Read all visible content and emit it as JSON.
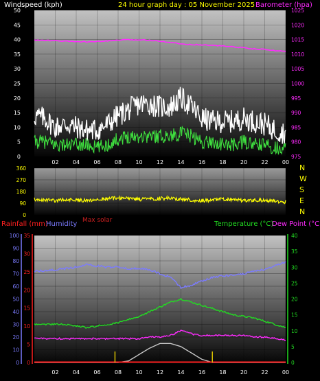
{
  "header": {
    "left_label": "Windspeed (kph)",
    "center_label": "24 hour graph day : 05 November 2025",
    "right_label": "Barometer (hpa)"
  },
  "colors": {
    "windspeed": "#ffffff",
    "wind_avg": "#3fe03f",
    "barometer": "#ff2bff",
    "direction": "#ffff00",
    "rainfall": "#ff2020",
    "humidity": "#7b7bff",
    "temperature": "#22dd22",
    "dewpoint": "#ff2bff",
    "solar": "#c8c8c8",
    "title": "#ffff00"
  },
  "x_ticks": [
    "02",
    "04",
    "06",
    "08",
    "10",
    "12",
    "14",
    "16",
    "18",
    "20",
    "22",
    "00"
  ],
  "chart_data": [
    {
      "type": "line",
      "panel": "wind-barometer",
      "left_axis": {
        "label": "Windspeed (kph)",
        "ticks": [
          0,
          5,
          10,
          15,
          20,
          25,
          30,
          35,
          40,
          45,
          50
        ],
        "range": [
          0,
          50
        ]
      },
      "right_axis": {
        "label": "Barometer (hpa)",
        "ticks": [
          975,
          980,
          985,
          990,
          995,
          1000,
          1005,
          1010,
          1015,
          1020,
          1025
        ],
        "range": [
          975,
          1025
        ]
      },
      "x": [
        0,
        1,
        2,
        3,
        4,
        5,
        6,
        7,
        8,
        9,
        10,
        11,
        12,
        13,
        14,
        15,
        16,
        17,
        18,
        19,
        20,
        21,
        22,
        23,
        24
      ],
      "series": [
        {
          "key": "gust",
          "axis": "left",
          "values": [
            14,
            13,
            10,
            11,
            10,
            9,
            9,
            11,
            14,
            16,
            18,
            18,
            17,
            17,
            20,
            17,
            13,
            12,
            12,
            12,
            13,
            12,
            11,
            9,
            8
          ]
        },
        {
          "key": "average",
          "axis": "left",
          "values": [
            5,
            5,
            4,
            4,
            4,
            4,
            3,
            4,
            6,
            7,
            7,
            7,
            7,
            7,
            8,
            7,
            5,
            5,
            4,
            4,
            5,
            4,
            4,
            3,
            3
          ]
        },
        {
          "key": "barometer",
          "axis": "right",
          "values": [
            1014.8,
            1014.7,
            1014.6,
            1014.4,
            1014.3,
            1014.2,
            1014.3,
            1014.5,
            1014.8,
            1014.9,
            1014.9,
            1014.8,
            1014.5,
            1014.0,
            1013.5,
            1013.3,
            1013.2,
            1013.0,
            1012.8,
            1012.5,
            1012.2,
            1011.8,
            1011.6,
            1011.2,
            1011.0
          ]
        }
      ]
    },
    {
      "type": "line",
      "panel": "wind-direction",
      "left_axis": {
        "ticks": [
          0,
          90,
          180,
          270,
          360
        ],
        "range": [
          0,
          360
        ]
      },
      "compass_labels": [
        "N",
        "W",
        "S",
        "E",
        "N"
      ],
      "x": [
        0,
        1,
        2,
        3,
        4,
        5,
        6,
        7,
        8,
        9,
        10,
        11,
        12,
        13,
        14,
        15,
        16,
        17,
        18,
        19,
        20,
        21,
        22,
        23,
        24
      ],
      "series": [
        {
          "key": "direction",
          "values": [
            120,
            115,
            110,
            120,
            115,
            110,
            120,
            125,
            130,
            125,
            120,
            120,
            125,
            130,
            120,
            115,
            110,
            115,
            120,
            115,
            110,
            115,
            110,
            105,
            100
          ]
        }
      ]
    },
    {
      "type": "line",
      "panel": "rain-humidity-temperature",
      "top_labels": {
        "rainfall": "Rainfall (mm)",
        "humidity": "Humidity",
        "solar": "Max solar",
        "temperature": "Temperature (°C)",
        "dewpoint": "Dew Point (°C)"
      },
      "humidity_axis": {
        "ticks": [
          0,
          10,
          20,
          30,
          40,
          50,
          60,
          70,
          80,
          90,
          100
        ],
        "range": [
          0,
          100
        ]
      },
      "rain_axis": {
        "ticks": [
          0,
          5,
          10,
          15,
          20,
          25,
          30,
          35
        ],
        "range": [
          0,
          35
        ]
      },
      "temp_axis": {
        "ticks": [
          0,
          5,
          10,
          15,
          20,
          25,
          30,
          35,
          40
        ],
        "range": [
          0,
          40
        ]
      },
      "x": [
        0,
        1,
        2,
        3,
        4,
        5,
        6,
        7,
        8,
        9,
        10,
        11,
        12,
        13,
        14,
        15,
        16,
        17,
        18,
        19,
        20,
        21,
        22,
        23,
        24
      ],
      "series": [
        {
          "key": "humidity",
          "axis": "humidity",
          "values": [
            72,
            72,
            73,
            74,
            75,
            77,
            76,
            75,
            75,
            74,
            74,
            73,
            70,
            67,
            59,
            61,
            64,
            67,
            68,
            69,
            70,
            72,
            73,
            76,
            79
          ]
        },
        {
          "key": "temperature",
          "axis": "temp",
          "values": [
            12,
            12,
            12,
            12,
            11.5,
            11,
            11.5,
            12,
            12.5,
            13.5,
            14.5,
            16,
            17.5,
            19,
            20,
            19,
            18,
            17,
            16,
            15,
            14.5,
            14,
            13,
            12,
            11
          ]
        },
        {
          "key": "dewpoint",
          "axis": "temp",
          "values": [
            7.5,
            7.5,
            7.5,
            7.5,
            7.5,
            7.5,
            7.5,
            7.5,
            7.5,
            7.5,
            7.5,
            8,
            8,
            8.5,
            10,
            9,
            8.5,
            8.5,
            8.5,
            8.5,
            8.5,
            8,
            8,
            7.5,
            7
          ]
        },
        {
          "key": "solar",
          "axis": "temp",
          "values": [
            0,
            0,
            0,
            0,
            0,
            0,
            0,
            0,
            0,
            0.5,
            2.5,
            4.5,
            6,
            6,
            5,
            3,
            1,
            0,
            0,
            0,
            0,
            0,
            0,
            0,
            0
          ]
        },
        {
          "key": "rainfall",
          "axis": "rain",
          "values": [
            0.1,
            0.1,
            0.1,
            0.1,
            0.1,
            0.1,
            0.1,
            0.1,
            0.1,
            0.1,
            0.1,
            0.1,
            0.1,
            0.1,
            0.1,
            0.1,
            0.1,
            0.1,
            0.1,
            0.1,
            0.1,
            0.1,
            0.1,
            0.1,
            0.1
          ]
        }
      ],
      "markers": {
        "sunrise_hour": 7.7,
        "sunset_hour": 17
      }
    }
  ]
}
